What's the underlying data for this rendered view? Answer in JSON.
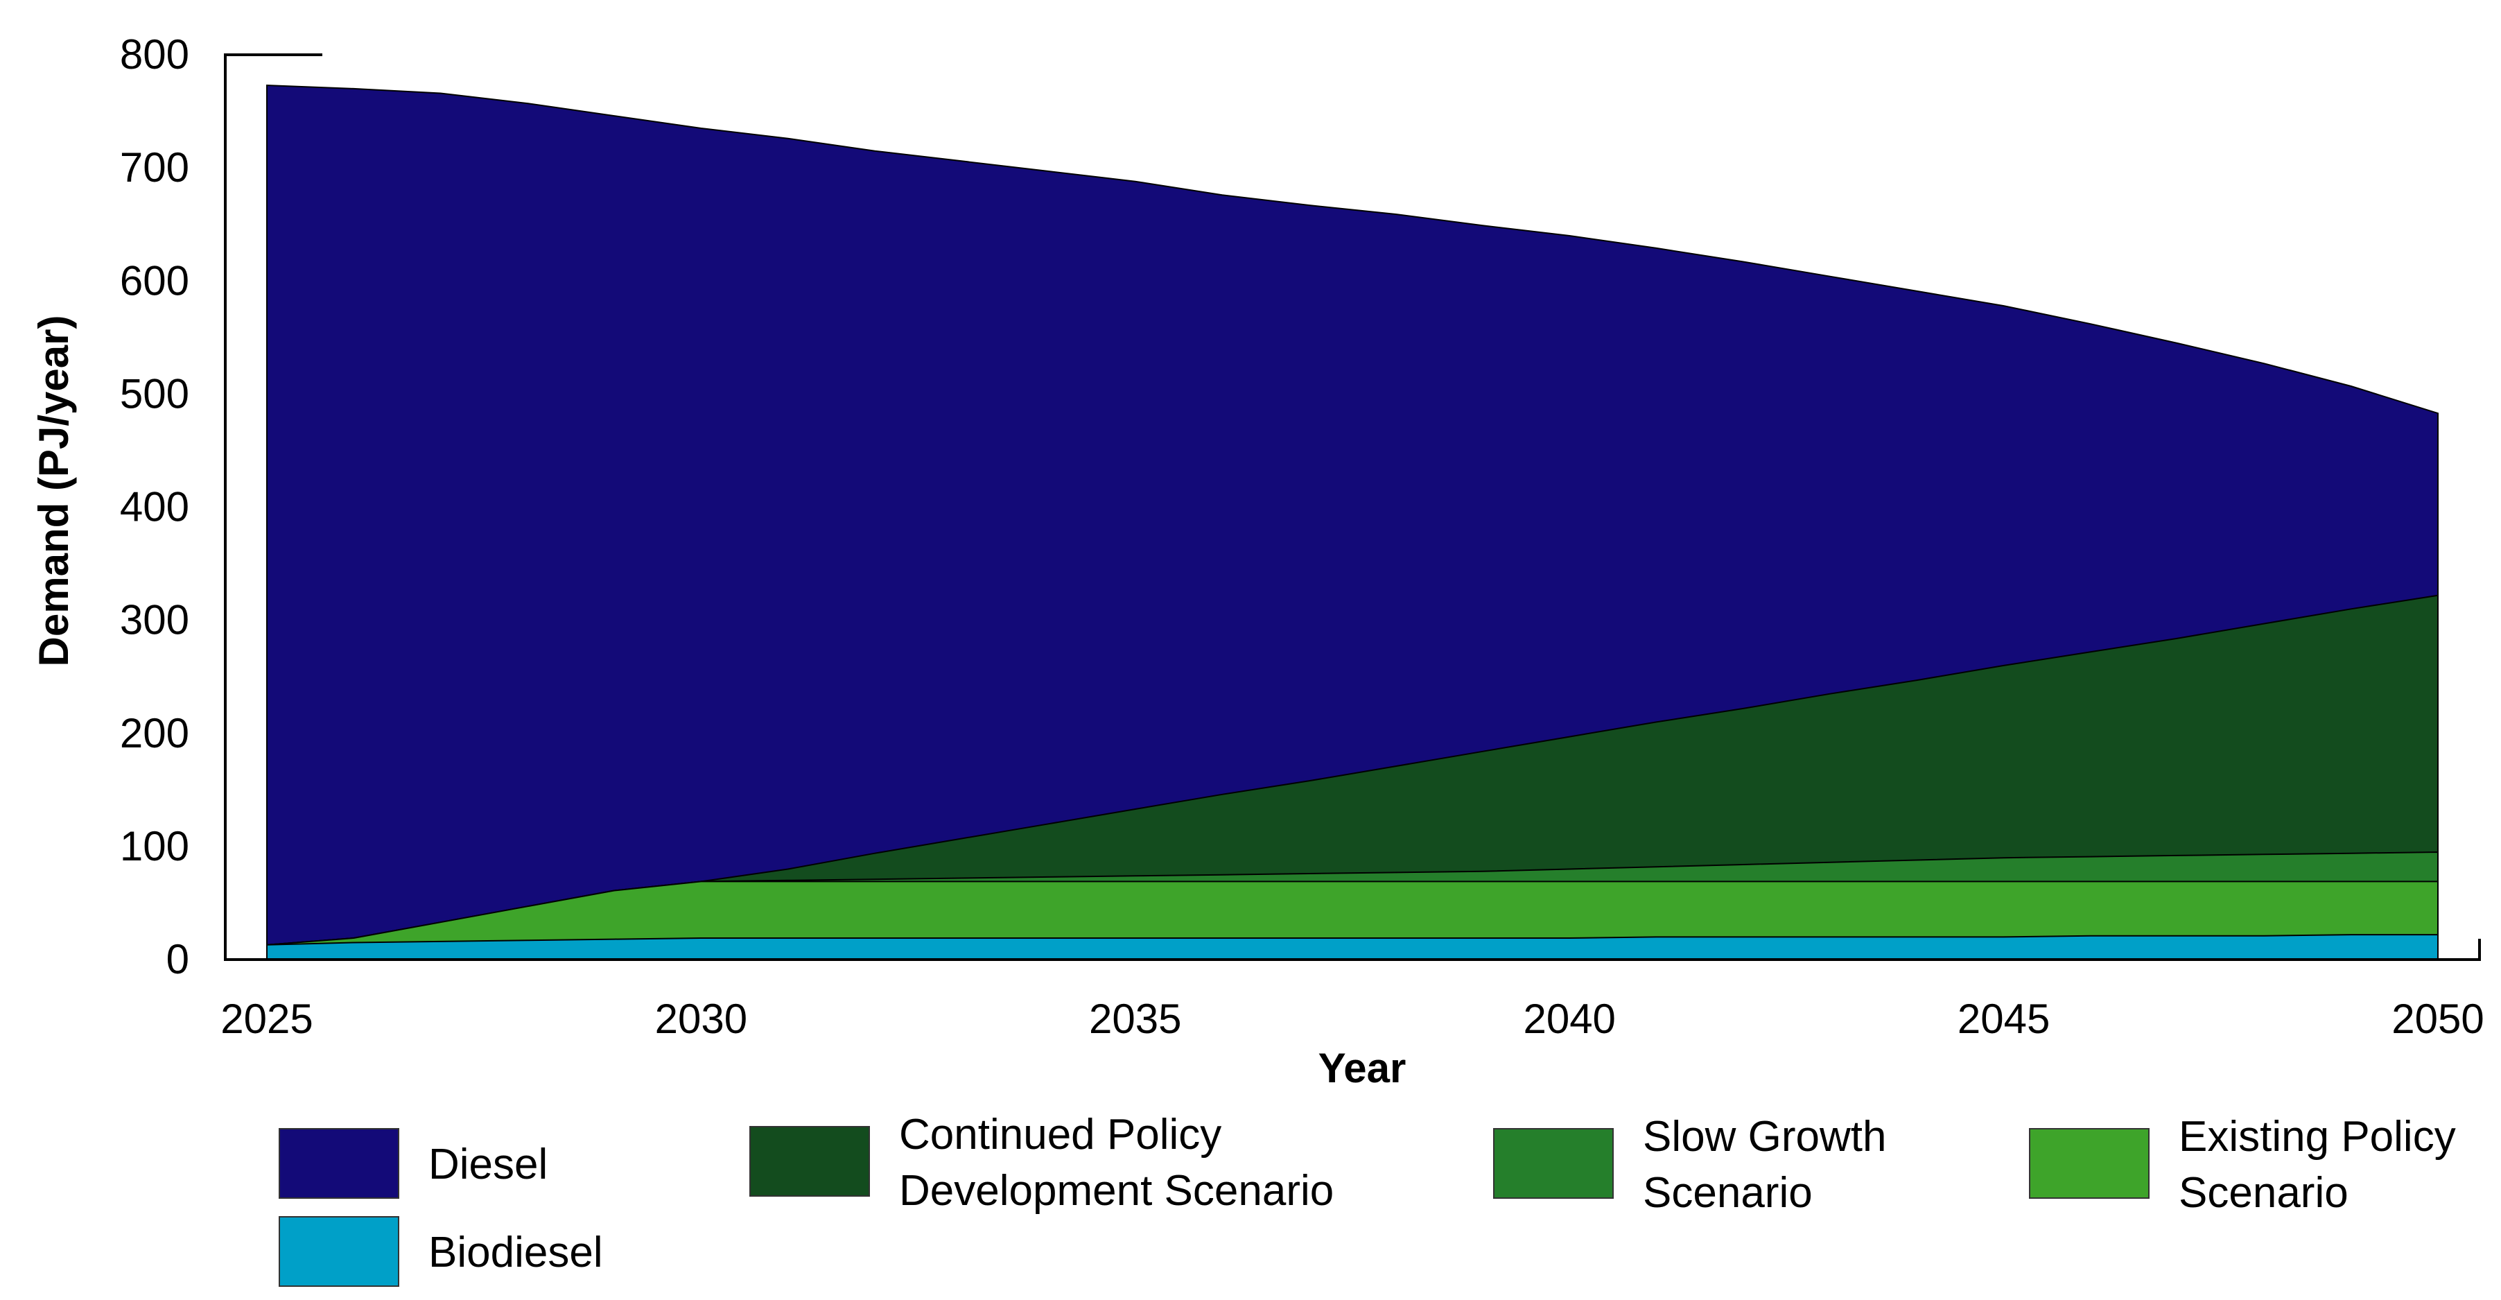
{
  "chart_data": {
    "type": "area",
    "title": "",
    "xlabel": "Year",
    "ylabel": "Demand (PJ/year)",
    "xlim": [
      2025,
      2050
    ],
    "ylim": [
      0,
      800
    ],
    "x_ticks": [
      "2025",
      "2030",
      "2035",
      "2040",
      "2045",
      "2050"
    ],
    "y_ticks": [
      "0",
      "100",
      "200",
      "300",
      "400",
      "500",
      "600",
      "700",
      "800"
    ],
    "x": [
      2025,
      2026,
      2027,
      2028,
      2029,
      2030,
      2031,
      2032,
      2033,
      2034,
      2035,
      2036,
      2037,
      2038,
      2039,
      2040,
      2041,
      2042,
      2043,
      2044,
      2045,
      2046,
      2047,
      2048,
      2049,
      2050
    ],
    "stacking_note": "Series are overlaid; each value is the top of its band in PJ/year",
    "series": [
      {
        "name": "Diesel",
        "color": "#130a78",
        "values": [
          773,
          770,
          766,
          757,
          746,
          735,
          726,
          715,
          706,
          697,
          688,
          676,
          667,
          659,
          649,
          640,
          629,
          617,
          604,
          591,
          578,
          562,
          545,
          527,
          507,
          483
        ]
      },
      {
        "name": "Continued Policy Development Scenario",
        "color": "#134c1e",
        "values": [
          13,
          19,
          33,
          47,
          61,
          69,
          80,
          94,
          107,
          120,
          133,
          146,
          158,
          171,
          184,
          197,
          210,
          222,
          235,
          247,
          260,
          272,
          284,
          297,
          310,
          322
        ]
      },
      {
        "name": "Slow Growth Scenario",
        "color": "#257f2b",
        "values": [
          13,
          19,
          33,
          47,
          61,
          69,
          70,
          71,
          72,
          73,
          74,
          75,
          76,
          77,
          78,
          80,
          82,
          84,
          86,
          88,
          90,
          91,
          92,
          93,
          94,
          95
        ]
      },
      {
        "name": "Existing Policy Scenario",
        "color": "#3ea42a",
        "values": [
          13,
          19,
          33,
          47,
          61,
          69,
          69,
          69,
          69,
          69,
          69,
          69,
          69,
          69,
          69,
          69,
          69,
          69,
          69,
          69,
          69,
          69,
          69,
          69,
          69,
          69
        ]
      },
      {
        "name": "Biodiesel",
        "color": "#00a0c8",
        "values": [
          13,
          15,
          16,
          17,
          18,
          19,
          19,
          19,
          19,
          19,
          19,
          19,
          19,
          19,
          19,
          19,
          20,
          20,
          20,
          20,
          20,
          21,
          21,
          21,
          22,
          22
        ]
      }
    ],
    "legend": [
      {
        "lines": [
          "Diesel"
        ],
        "color": "#130a78"
      },
      {
        "lines": [
          "Biodiesel"
        ],
        "color": "#00a0c8"
      },
      {
        "lines": [
          "Continued Policy",
          "Development Scenario"
        ],
        "color": "#134c1e"
      },
      {
        "lines": [
          "Slow Growth",
          "Scenario"
        ],
        "color": "#257f2b"
      },
      {
        "lines": [
          "Existing Policy",
          "Scenario"
        ],
        "color": "#3ea42a"
      }
    ]
  }
}
